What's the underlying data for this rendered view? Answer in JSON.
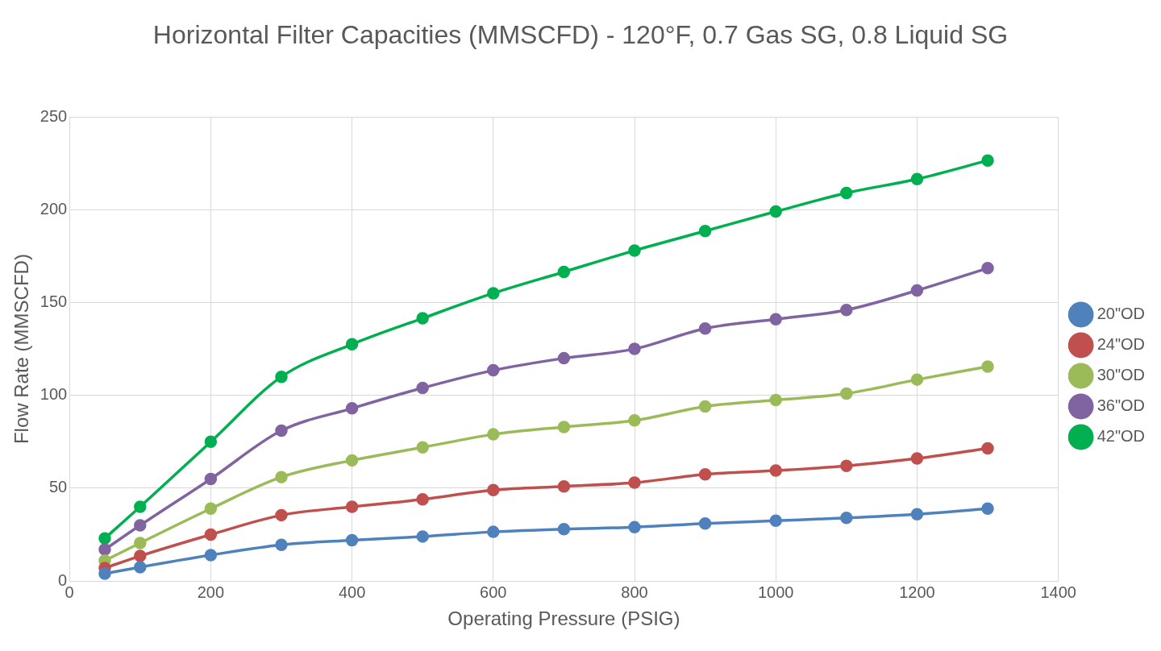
{
  "chart_data": {
    "type": "line",
    "title": "Horizontal Filter Capacities (MMSCFD) - 120°F, 0.7 Gas SG, 0.8 Liquid SG",
    "xlabel": "Operating Pressure (PSIG)",
    "ylabel": "Flow Rate (MMSCFD)",
    "x": [
      50,
      100,
      200,
      300,
      400,
      500,
      600,
      700,
      800,
      900,
      1000,
      1100,
      1200,
      1300
    ],
    "series": [
      {
        "name": "20\"OD",
        "color": "#4f81bd",
        "values": [
          4,
          7.5,
          14,
          19.5,
          22,
          24,
          26.5,
          28,
          29,
          31,
          32.5,
          34,
          36,
          39
        ]
      },
      {
        "name": "24\"OD",
        "color": "#c0504d",
        "values": [
          7,
          13.5,
          25,
          35.5,
          40,
          44,
          49,
          51,
          53,
          57.5,
          59.5,
          62,
          66,
          71.5
        ]
      },
      {
        "name": "30\"OD",
        "color": "#9bbb59",
        "values": [
          11,
          20.5,
          39,
          56,
          65,
          72,
          79,
          83,
          86.5,
          94,
          97.5,
          101,
          108.5,
          115.5
        ]
      },
      {
        "name": "36\"OD",
        "color": "#8064a2",
        "values": [
          17,
          30,
          55,
          81,
          93,
          104,
          113.5,
          120,
          125,
          136,
          141,
          146,
          156.5,
          168.5
        ]
      },
      {
        "name": "42\"OD",
        "color": "#00b050",
        "values": [
          23,
          40,
          75,
          110,
          127.5,
          141.5,
          155,
          166.5,
          178,
          188.5,
          199,
          209,
          216.5,
          226.5
        ]
      }
    ],
    "xlim": [
      0,
      1400
    ],
    "xticks": [
      0,
      200,
      400,
      600,
      800,
      1000,
      1200,
      1400
    ],
    "ylim": [
      0,
      250
    ],
    "yticks": [
      0,
      50,
      100,
      150,
      200,
      250
    ],
    "grid": true,
    "legend": "right",
    "marker": "circle"
  }
}
